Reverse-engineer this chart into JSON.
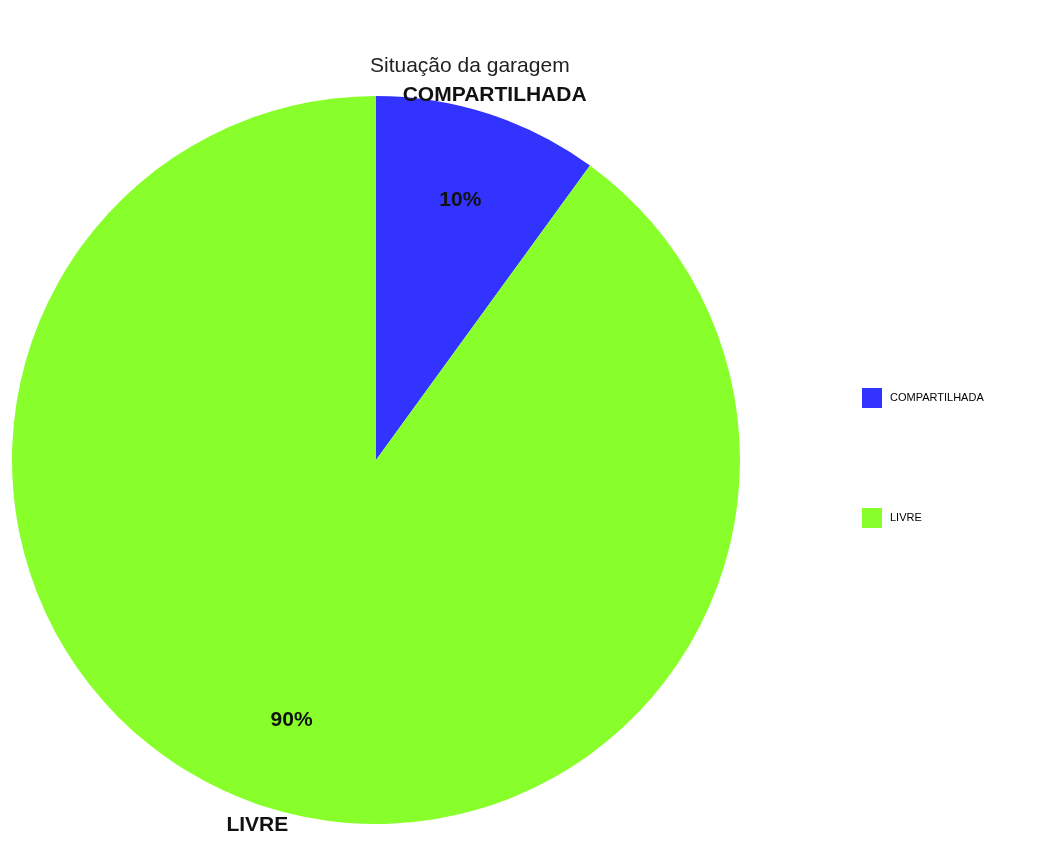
{
  "chart_data": {
    "type": "pie",
    "title": "Situação da garagem",
    "categories": [
      "COMPARTILHADA",
      "LIVRE"
    ],
    "values": [
      10,
      90
    ],
    "value_labels": [
      "10%",
      "90%"
    ],
    "colors": [
      "#3333ff",
      "#88ff2a"
    ],
    "legend": "right"
  }
}
